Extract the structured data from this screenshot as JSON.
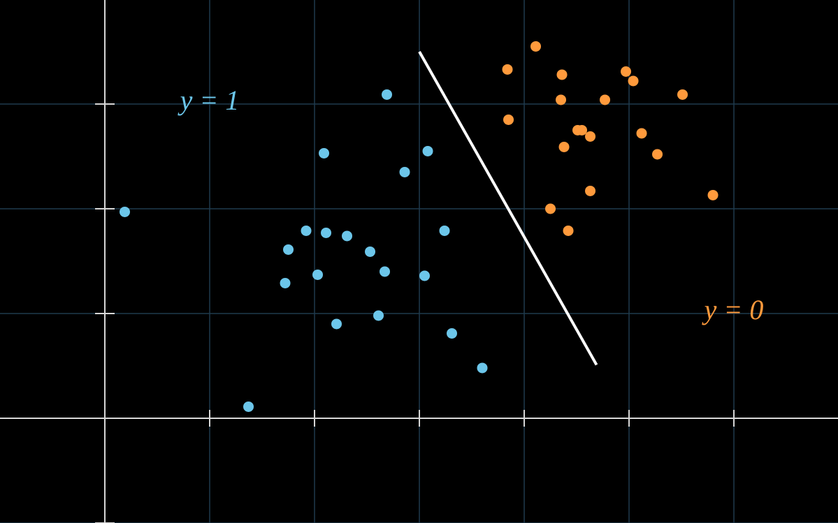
{
  "chart_data": {
    "type": "scatter",
    "xlim": [
      -1,
      6.993
    ],
    "ylim": [
      -1,
      3.993
    ],
    "xticks": [
      0,
      1,
      2,
      3,
      4,
      5,
      6
    ],
    "yticks": [
      -1,
      0,
      1,
      2,
      3,
      4
    ],
    "grid": true,
    "series": [
      {
        "label": "y = 1",
        "color": "#6cc6ea",
        "x": [
          0.19,
          1.37,
          2.69,
          2.09,
          3.08,
          2.86,
          1.92,
          2.11,
          2.31,
          1.75,
          2.53,
          3.24,
          2.67,
          2.03,
          3.05,
          1.72,
          2.61,
          2.21,
          3.31,
          3.6
        ],
        "y": [
          1.97,
          0.11,
          3.09,
          2.53,
          2.55,
          2.35,
          1.79,
          1.77,
          1.74,
          1.61,
          1.59,
          1.79,
          1.4,
          1.37,
          1.36,
          1.29,
          0.98,
          0.9,
          0.81,
          0.48
        ]
      },
      {
        "label": "y = 0",
        "color": "#ff9a3c",
        "x": [
          4.11,
          3.84,
          4.36,
          4.97,
          5.04,
          4.35,
          4.77,
          5.51,
          3.85,
          4.51,
          4.55,
          4.63,
          5.12,
          4.38,
          5.27,
          4.63,
          5.8,
          4.25,
          4.42
        ],
        "y": [
          3.55,
          3.33,
          3.28,
          3.31,
          3.22,
          3.04,
          3.04,
          3.09,
          2.85,
          2.75,
          2.75,
          2.69,
          2.72,
          2.59,
          2.52,
          2.17,
          2.13,
          2.0,
          1.79
        ]
      }
    ],
    "boundary": {
      "color": "#ffffff",
      "x": [
        3.0,
        4.69
      ],
      "y": [
        3.5,
        0.51
      ]
    }
  }
}
